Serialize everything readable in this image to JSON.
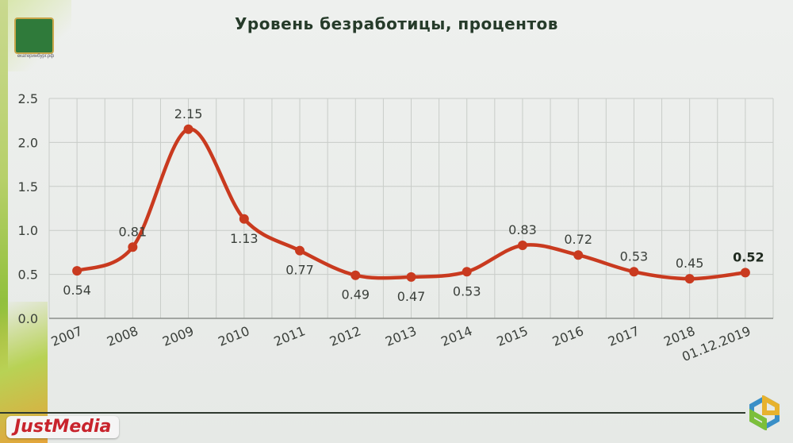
{
  "header": {
    "title": "Уровень безработицы, процентов",
    "emblem_site": "екатеринбург.рф"
  },
  "footer": {
    "brand": "JustMedia"
  },
  "colors": {
    "line": "#c93a1f",
    "grid": "#c8ccc8",
    "axis_text": "#3a3f3a"
  },
  "chart_data": {
    "type": "line",
    "title": "Уровень безработицы, процентов",
    "xlabel": "",
    "ylabel": "",
    "ylim": [
      0,
      2.5
    ],
    "yticks": [
      "0.0",
      "0.5",
      "1.0",
      "1.5",
      "2.0",
      "2.5"
    ],
    "categories": [
      "2007",
      "2008",
      "2009",
      "2010",
      "2011",
      "2012",
      "2013",
      "2014",
      "2015",
      "2016",
      "2017",
      "2018",
      "01.12.2019"
    ],
    "series": [
      {
        "values": [
          0.54,
          0.81,
          2.15,
          1.13,
          0.77,
          0.49,
          0.47,
          0.53,
          0.83,
          0.72,
          0.53,
          0.45,
          0.52
        ],
        "labels": [
          "0.54",
          "0.81",
          "2.15",
          "1.13",
          "0.77",
          "0.49",
          "0.47",
          "0.53",
          "0.83",
          "0.72",
          "0.53",
          "0.45",
          "0.52"
        ]
      }
    ],
    "grid": true,
    "legend": "none"
  }
}
